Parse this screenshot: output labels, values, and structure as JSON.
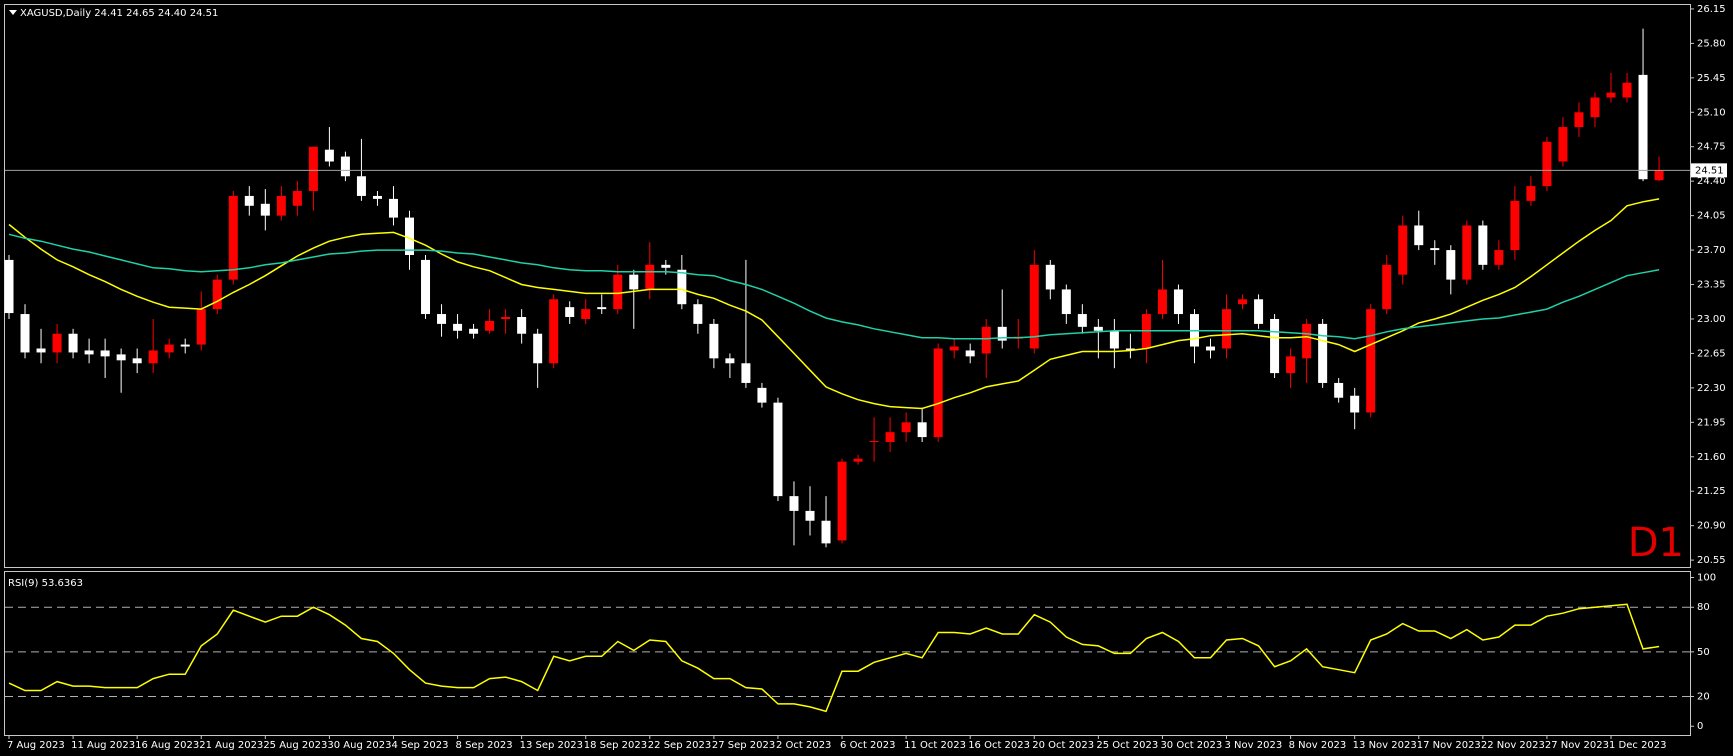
{
  "chart_data": [
    {
      "type": "candlestick",
      "title": "XAGUSD,Daily  24.41 24.65 24.40 24.51",
      "watermark": "D1",
      "categories": [
        "7 Aug 2023",
        null,
        null,
        null,
        "11 Aug 2023",
        null,
        null,
        null,
        "16 Aug 2023",
        null,
        null,
        null,
        "21 Aug 2023",
        null,
        null,
        null,
        "25 Aug 2023",
        null,
        null,
        null,
        "30 Aug 2023",
        null,
        null,
        null,
        "4 Sep 2023",
        null,
        null,
        null,
        "8 Sep 2023",
        null,
        null,
        null,
        "13 Sep 2023",
        null,
        null,
        null,
        "18 Sep 2023",
        null,
        null,
        null,
        "22 Sep 2023",
        null,
        null,
        null,
        "27 Sep 2023",
        null,
        null,
        null,
        "2 Oct 2023",
        null,
        null,
        null,
        "6 Oct 2023",
        null,
        null,
        null,
        "11 Oct 2023",
        null,
        null,
        null,
        "16 Oct 2023",
        null,
        null,
        null,
        "20 Oct 2023",
        null,
        null,
        null,
        "25 Oct 2023",
        null,
        null,
        null,
        "30 Oct 2023",
        null,
        null,
        null,
        "3 Nov 2023",
        null,
        null,
        null,
        "8 Nov 2023",
        null,
        null,
        null,
        "13 Nov 2023",
        null,
        null,
        null,
        "17 Nov 2023",
        null,
        null,
        null,
        "22 Nov 2023",
        null,
        null,
        null,
        "27 Nov 2023",
        null,
        null,
        null,
        "1 Dec 2023",
        null,
        null,
        null
      ],
      "open": [
        23.6,
        23.05,
        22.7,
        22.66,
        22.85,
        22.68,
        22.68,
        22.64,
        22.6,
        22.55,
        22.66,
        22.74,
        22.74,
        23.1,
        23.4,
        24.25,
        24.17,
        24.05,
        24.15,
        24.3,
        24.72,
        24.65,
        24.45,
        24.25,
        24.22,
        24.03,
        23.6,
        23.05,
        22.95,
        22.9,
        22.88,
        23.0,
        23.02,
        22.85,
        22.55,
        23.12,
        23.0,
        23.12,
        23.1,
        23.45,
        23.3,
        23.55,
        23.5,
        23.15,
        22.95,
        22.6,
        22.55,
        22.3,
        22.15,
        21.2,
        21.05,
        20.95,
        20.75,
        21.55,
        21.75,
        21.75,
        21.85,
        21.95,
        21.8,
        22.68,
        22.68,
        22.65,
        22.92,
        22.8,
        22.7,
        23.55,
        23.3,
        23.05,
        22.92,
        22.88,
        22.7,
        22.7,
        23.05,
        23.3,
        23.05,
        22.72,
        22.7,
        23.15,
        23.2,
        23.0,
        22.45,
        22.6,
        22.95,
        22.35,
        22.22,
        22.05,
        23.1,
        23.45,
        23.95,
        23.72,
        23.7,
        23.4,
        23.95,
        23.55,
        23.7,
        24.2,
        24.35,
        24.6,
        24.95,
        25.05,
        25.25,
        25.25,
        25.48,
        24.41
      ],
      "high": [
        23.65,
        23.15,
        22.9,
        22.95,
        22.9,
        22.8,
        22.8,
        22.7,
        22.7,
        23.0,
        22.8,
        22.8,
        23.28,
        23.45,
        24.3,
        24.35,
        24.32,
        24.35,
        24.4,
        24.75,
        24.95,
        24.7,
        24.83,
        24.3,
        24.35,
        24.1,
        23.65,
        23.15,
        23.05,
        22.95,
        23.1,
        23.1,
        23.1,
        22.9,
        23.25,
        23.18,
        23.2,
        23.25,
        23.55,
        23.5,
        23.78,
        23.6,
        23.65,
        23.2,
        23.0,
        22.65,
        23.6,
        22.35,
        22.2,
        21.35,
        21.3,
        21.2,
        21.58,
        21.62,
        22.0,
        22.0,
        22.05,
        22.1,
        22.75,
        22.8,
        22.75,
        23.0,
        23.3,
        23.0,
        23.7,
        23.6,
        23.35,
        23.15,
        23.0,
        23.0,
        22.85,
        23.1,
        23.6,
        23.35,
        23.1,
        22.8,
        23.25,
        23.25,
        23.25,
        23.05,
        22.7,
        23.0,
        23.0,
        22.4,
        22.3,
        23.15,
        23.65,
        24.05,
        24.1,
        23.8,
        23.75,
        24.0,
        24.0,
        23.8,
        24.35,
        24.45,
        24.85,
        25.05,
        25.2,
        25.3,
        25.5,
        25.5,
        25.95,
        24.65
      ],
      "low": [
        23.0,
        22.6,
        22.55,
        22.55,
        22.6,
        22.55,
        22.4,
        22.25,
        22.45,
        22.45,
        22.6,
        22.65,
        22.68,
        23.05,
        23.35,
        24.05,
        23.9,
        24.0,
        24.05,
        24.1,
        24.55,
        24.4,
        24.2,
        24.15,
        23.95,
        23.5,
        23.0,
        22.82,
        22.8,
        22.8,
        22.85,
        22.85,
        22.75,
        22.3,
        22.5,
        22.95,
        22.95,
        23.05,
        23.05,
        22.9,
        23.2,
        23.45,
        23.1,
        22.85,
        22.5,
        22.4,
        22.3,
        22.1,
        21.15,
        20.7,
        20.8,
        20.68,
        20.72,
        21.52,
        21.55,
        21.65,
        21.75,
        21.75,
        21.75,
        22.6,
        22.55,
        22.4,
        22.7,
        22.7,
        22.65,
        23.2,
        22.95,
        22.85,
        22.6,
        22.5,
        22.6,
        22.55,
        23.0,
        22.95,
        22.55,
        22.6,
        22.6,
        23.1,
        22.9,
        22.4,
        22.3,
        22.35,
        22.3,
        22.15,
        21.88,
        22.0,
        23.05,
        23.35,
        23.7,
        23.55,
        23.25,
        23.35,
        23.5,
        23.5,
        23.6,
        24.15,
        24.3,
        24.55,
        24.85,
        24.95,
        25.2,
        25.2,
        24.4,
        24.4
      ],
      "close": [
        23.06,
        22.66,
        22.66,
        22.85,
        22.66,
        22.64,
        22.62,
        22.58,
        22.55,
        22.68,
        22.74,
        22.72,
        23.1,
        23.4,
        24.25,
        24.15,
        24.05,
        24.25,
        24.3,
        24.75,
        24.6,
        24.45,
        24.25,
        24.22,
        24.03,
        23.65,
        23.05,
        22.95,
        22.88,
        22.85,
        22.98,
        23.02,
        22.85,
        22.55,
        23.2,
        23.02,
        23.1,
        23.1,
        23.45,
        23.3,
        23.55,
        23.52,
        23.15,
        22.95,
        22.6,
        22.55,
        22.35,
        22.15,
        21.2,
        21.05,
        20.95,
        20.72,
        21.55,
        21.58,
        21.76,
        21.85,
        21.95,
        21.8,
        22.7,
        22.72,
        22.62,
        22.92,
        22.78,
        22.82,
        23.55,
        23.3,
        23.05,
        22.92,
        22.88,
        22.7,
        22.68,
        23.05,
        23.3,
        23.05,
        22.72,
        22.68,
        23.1,
        23.2,
        22.95,
        22.45,
        22.62,
        22.95,
        22.35,
        22.2,
        22.05,
        23.1,
        23.55,
        23.95,
        23.75,
        23.7,
        23.4,
        23.95,
        23.55,
        23.7,
        24.2,
        24.35,
        24.8,
        24.95,
        25.1,
        25.25,
        25.3,
        25.4,
        24.42,
        24.51
      ],
      "up_color": "#ff0000",
      "down_color": "#ffffff",
      "series": [
        {
          "color": "#ffff00",
          "values": [
            23.96,
            23.83,
            23.71,
            23.6,
            23.53,
            23.45,
            23.38,
            23.3,
            23.23,
            23.17,
            23.12,
            23.11,
            23.1,
            23.18,
            23.27,
            23.35,
            23.44,
            23.54,
            23.64,
            23.72,
            23.79,
            23.83,
            23.86,
            23.87,
            23.88,
            23.82,
            23.75,
            23.66,
            23.58,
            23.53,
            23.49,
            23.42,
            23.35,
            23.32,
            23.3,
            23.28,
            23.26,
            23.26,
            23.26,
            23.28,
            23.3,
            23.3,
            23.3,
            23.25,
            23.21,
            23.14,
            23.08,
            22.99,
            22.82,
            22.65,
            22.48,
            22.31,
            22.24,
            22.18,
            22.14,
            22.11,
            22.1,
            22.09,
            22.14,
            22.2,
            22.25,
            22.31,
            22.34,
            22.37,
            22.48,
            22.59,
            22.63,
            22.67,
            22.67,
            22.67,
            22.68,
            22.7,
            22.74,
            22.78,
            22.8,
            22.83,
            22.84,
            22.85,
            22.83,
            22.81,
            22.81,
            22.82,
            22.78,
            22.74,
            22.67,
            22.74,
            22.81,
            22.88,
            22.96,
            23.0,
            23.05,
            23.12,
            23.19,
            23.25,
            23.32,
            23.43,
            23.55,
            23.67,
            23.79,
            23.9,
            24.0,
            24.15,
            24.19,
            24.22
          ]
        },
        {
          "color": "#20d0a8",
          "values": [
            23.86,
            23.82,
            23.79,
            23.75,
            23.71,
            23.68,
            23.64,
            23.6,
            23.56,
            23.52,
            23.51,
            23.49,
            23.48,
            23.49,
            23.5,
            23.52,
            23.55,
            23.57,
            23.6,
            23.63,
            23.66,
            23.67,
            23.69,
            23.7,
            23.7,
            23.7,
            23.7,
            23.69,
            23.67,
            23.66,
            23.63,
            23.6,
            23.57,
            23.55,
            23.52,
            23.5,
            23.49,
            23.49,
            23.48,
            23.48,
            23.48,
            23.48,
            23.47,
            23.45,
            23.44,
            23.39,
            23.35,
            23.3,
            23.23,
            23.16,
            23.08,
            23.01,
            22.97,
            22.94,
            22.9,
            22.87,
            22.84,
            22.81,
            22.81,
            22.8,
            22.8,
            22.8,
            22.81,
            22.81,
            22.82,
            22.84,
            22.85,
            22.86,
            22.87,
            22.88,
            22.88,
            22.88,
            22.88,
            22.88,
            22.88,
            22.88,
            22.88,
            22.88,
            22.88,
            22.87,
            22.86,
            22.85,
            22.83,
            22.82,
            22.8,
            22.83,
            22.87,
            22.9,
            22.92,
            22.94,
            22.96,
            22.98,
            23.0,
            23.01,
            23.04,
            23.07,
            23.1,
            23.17,
            23.23,
            23.3,
            23.37,
            23.44,
            23.47,
            23.5
          ]
        }
      ],
      "current_price": 24.51,
      "ylim": [
        20.48,
        26.19
      ],
      "yticks": [
        20.55,
        {
          "value": 20.9,
          "label": "20.90"
        },
        21.25,
        {
          "value": 21.6,
          "label": "21.60"
        },
        21.95,
        {
          "value": 22.3,
          "label": "22.30"
        },
        22.65,
        {
          "value": 23.0,
          "label": "23.00"
        },
        23.35,
        {
          "value": 23.7,
          "label": "23.70"
        },
        24.05,
        {
          "value": 24.4,
          "label": "24.40"
        },
        24.75,
        {
          "value": 25.1,
          "label": "25.10"
        },
        25.45,
        {
          "value": 25.8,
          "label": "25.80"
        },
        26.15
      ]
    },
    {
      "type": "line",
      "title": "RSI(9) 53.6363",
      "series": [
        {
          "color": "#ffff00",
          "values": [
            29,
            24,
            24,
            30,
            27,
            27,
            26,
            26,
            26,
            32,
            35,
            35,
            54,
            62,
            78,
            74,
            70,
            74,
            74,
            80,
            75,
            68,
            59,
            57,
            49,
            38,
            29,
            27,
            26,
            26,
            32,
            33,
            30,
            24,
            47,
            44,
            47,
            47,
            57,
            51,
            58,
            57,
            44,
            39,
            32,
            32,
            26,
            25,
            15,
            15,
            13,
            10,
            37,
            37,
            43,
            46,
            49,
            46,
            63,
            63,
            62,
            66,
            62,
            62,
            75,
            70,
            60,
            55,
            54,
            49,
            49,
            59,
            63,
            57,
            46,
            46,
            58,
            59,
            54,
            40,
            44,
            52,
            40,
            38,
            36,
            58,
            62,
            69,
            64,
            64,
            59,
            65,
            58,
            60,
            68,
            68,
            74,
            76,
            79,
            80,
            81,
            82,
            52,
            53.64
          ]
        }
      ],
      "ylim": [
        -5.9,
        103.7
      ],
      "yticks": [
        0,
        20,
        50,
        80,
        100
      ],
      "levels": [
        20,
        50,
        80
      ]
    }
  ]
}
